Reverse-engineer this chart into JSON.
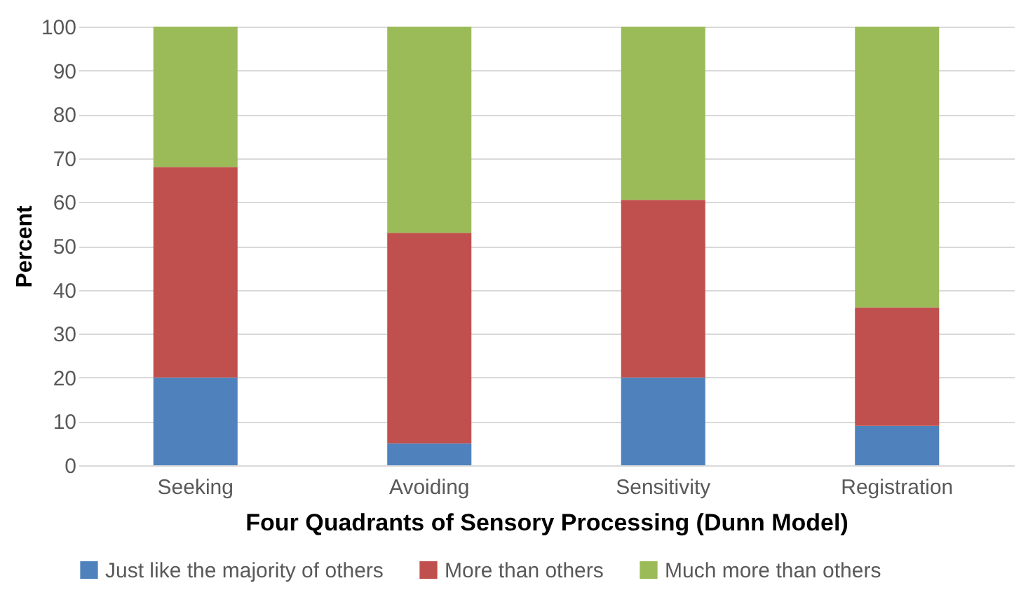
{
  "chart_data": {
    "type": "bar",
    "stacked": true,
    "xlabel": "Four Quadrants of Sensory Processing (Dunn Model)",
    "ylabel": "Percent",
    "categories": [
      "Seeking",
      "Avoiding",
      "Sensitivity",
      "Registration"
    ],
    "series": [
      {
        "name": "Just like the majority of others",
        "color": "#4f81bd",
        "values": [
          20,
          5,
          20,
          9
        ]
      },
      {
        "name": "More than others",
        "color": "#c0504d",
        "values": [
          48,
          48,
          40.5,
          27
        ]
      },
      {
        "name": "Much more than others",
        "color": "#9bbb59",
        "values": [
          32,
          47,
          39.5,
          64
        ]
      }
    ],
    "ylim": [
      0,
      100
    ],
    "yticks": [
      0,
      10,
      20,
      30,
      40,
      50,
      60,
      70,
      80,
      90,
      100
    ],
    "grid": "y",
    "legend": "bottom"
  }
}
